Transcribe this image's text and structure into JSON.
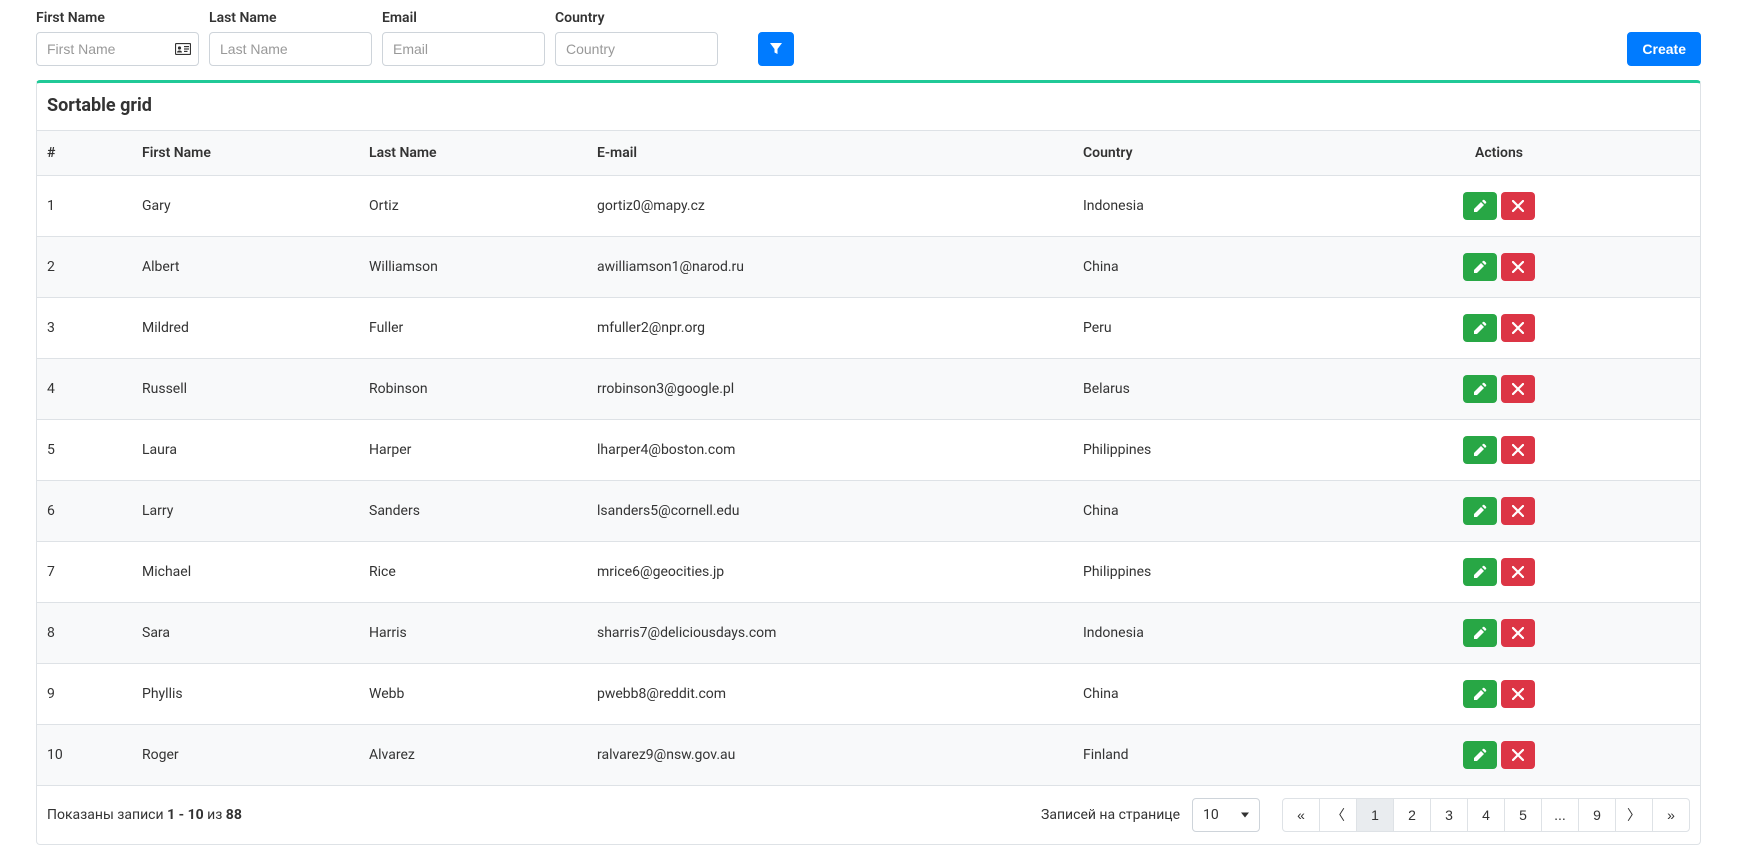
{
  "filters": {
    "first_name": {
      "label": "First Name",
      "placeholder": "First Name",
      "value": ""
    },
    "last_name": {
      "label": "Last Name",
      "placeholder": "Last Name",
      "value": ""
    },
    "email": {
      "label": "Email",
      "placeholder": "Email",
      "value": ""
    },
    "country": {
      "label": "Country",
      "placeholder": "Country",
      "value": ""
    }
  },
  "buttons": {
    "create": "Create"
  },
  "grid": {
    "title": "Sortable grid",
    "columns": {
      "num": "#",
      "first": "First Name",
      "last": "Last Name",
      "email": "E-mail",
      "country": "Country",
      "actions": "Actions"
    },
    "rows": [
      {
        "num": "1",
        "first": "Gary",
        "last": "Ortiz",
        "email": "gortiz0@mapy.cz",
        "country": "Indonesia"
      },
      {
        "num": "2",
        "first": "Albert",
        "last": "Williamson",
        "email": "awilliamson1@narod.ru",
        "country": "China"
      },
      {
        "num": "3",
        "first": "Mildred",
        "last": "Fuller",
        "email": "mfuller2@npr.org",
        "country": "Peru"
      },
      {
        "num": "4",
        "first": "Russell",
        "last": "Robinson",
        "email": "rrobinson3@google.pl",
        "country": "Belarus"
      },
      {
        "num": "5",
        "first": "Laura",
        "last": "Harper",
        "email": "lharper4@boston.com",
        "country": "Philippines"
      },
      {
        "num": "6",
        "first": "Larry",
        "last": "Sanders",
        "email": "lsanders5@cornell.edu",
        "country": "China"
      },
      {
        "num": "7",
        "first": "Michael",
        "last": "Rice",
        "email": "mrice6@geocities.jp",
        "country": "Philippines"
      },
      {
        "num": "8",
        "first": "Sara",
        "last": "Harris",
        "email": "sharris7@deliciousdays.com",
        "country": "Indonesia"
      },
      {
        "num": "9",
        "first": "Phyllis",
        "last": "Webb",
        "email": "pwebb8@reddit.com",
        "country": "China"
      },
      {
        "num": "10",
        "first": "Roger",
        "last": "Alvarez",
        "email": "ralvarez9@nsw.gov.au",
        "country": "Finland"
      }
    ]
  },
  "footer": {
    "shown_prefix": "Показаны записи ",
    "range": "1 - 10",
    "of_text": " из ",
    "total": "88",
    "per_page_label": "Записей на странице",
    "per_page_value": "10"
  },
  "pagination": {
    "pages": [
      "«",
      "〈",
      "1",
      "2",
      "3",
      "4",
      "5",
      "...",
      "9",
      "〉",
      "»"
    ],
    "active_index": 2
  },
  "colors": {
    "primary": "#007bff",
    "success": "#28a745",
    "danger": "#dc3545",
    "teal_accent": "#20c997",
    "border": "#dee2e6",
    "stripe": "#f8f9fa"
  }
}
